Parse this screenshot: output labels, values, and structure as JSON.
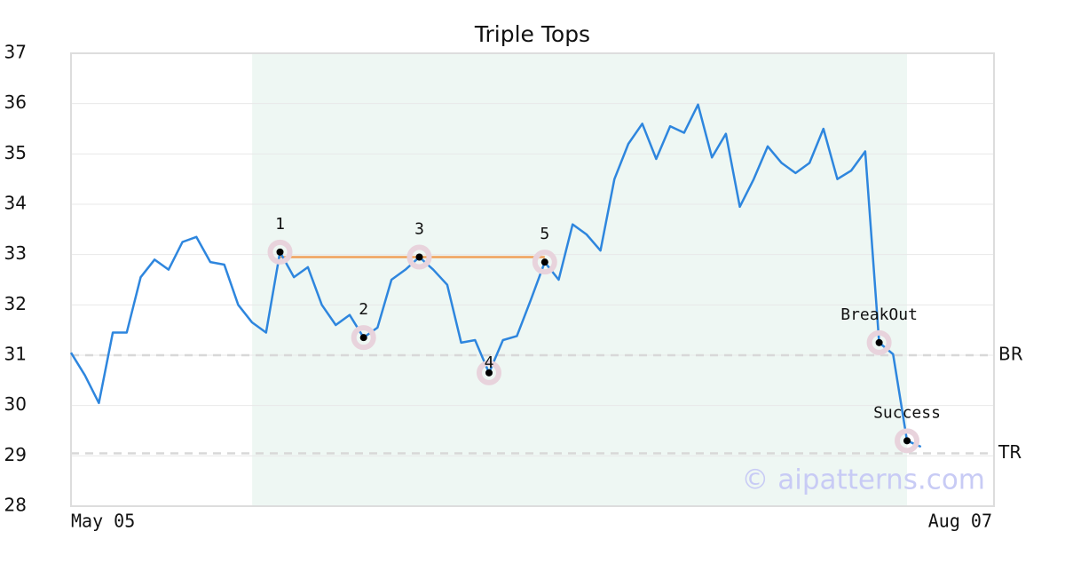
{
  "chart_data": {
    "type": "line",
    "title": "Triple Tops",
    "categories": [
      "May 05",
      null,
      null,
      null,
      null,
      null,
      null,
      null,
      null,
      null,
      null,
      null,
      null,
      null,
      null,
      null,
      null,
      null,
      null,
      null,
      null,
      null,
      null,
      null,
      null,
      null,
      null,
      null,
      null,
      null,
      null,
      null,
      null,
      null,
      null,
      null,
      null,
      null,
      null,
      null,
      null,
      null,
      null,
      null,
      null,
      null,
      null,
      null,
      null,
      null,
      null,
      null,
      null,
      null,
      null,
      null,
      null,
      null,
      null,
      null,
      null,
      "Aug 07"
    ],
    "series": [
      {
        "color": "#2e86de",
        "values": [
          31.05,
          30.6,
          30.05,
          31.45,
          31.45,
          32.55,
          32.9,
          32.7,
          33.25,
          33.35,
          32.85,
          32.8,
          32.0,
          31.65,
          31.45,
          33.05,
          32.55,
          32.75,
          32.0,
          31.6,
          31.8,
          31.35,
          31.55,
          32.5,
          32.7,
          32.95,
          32.7,
          32.4,
          31.25,
          31.3,
          30.65,
          31.3,
          31.38,
          32.1,
          32.85,
          32.5,
          33.6,
          33.4,
          33.08,
          34.5,
          35.2,
          35.6,
          34.9,
          35.55,
          35.42,
          35.98,
          34.93,
          35.4,
          33.95,
          34.5,
          35.15,
          34.82,
          34.62,
          34.82,
          35.5,
          34.5,
          34.67,
          35.05,
          31.25,
          31.02,
          29.3,
          29.18
        ]
      }
    ],
    "ylim": [
      28,
      37
    ],
    "yticks": [
      28,
      29,
      30,
      31,
      32,
      33,
      34,
      35,
      36,
      37
    ],
    "grid": true,
    "shade": {
      "from": 13,
      "to": 60,
      "color": "#eef7f3"
    },
    "resistance": {
      "value": 32.95,
      "from": 15,
      "to": 34,
      "color": "#f0a15a"
    },
    "reference_lines": [
      {
        "label": "BR",
        "value": 31.0
      },
      {
        "label": "TR",
        "value": 29.05
      }
    ],
    "annotations": [
      {
        "label": "1",
        "index": 15,
        "position": "above"
      },
      {
        "label": "2",
        "index": 21,
        "position": "above"
      },
      {
        "label": "3",
        "index": 25,
        "position": "above"
      },
      {
        "label": "4",
        "index": 30,
        "position": "below"
      },
      {
        "label": "5",
        "index": 34,
        "position": "above"
      },
      {
        "label": "BreakOut",
        "index": 58,
        "position": "above"
      },
      {
        "label": "Success",
        "index": 60,
        "position": "above"
      }
    ],
    "watermark": "© aipatterns.com"
  }
}
